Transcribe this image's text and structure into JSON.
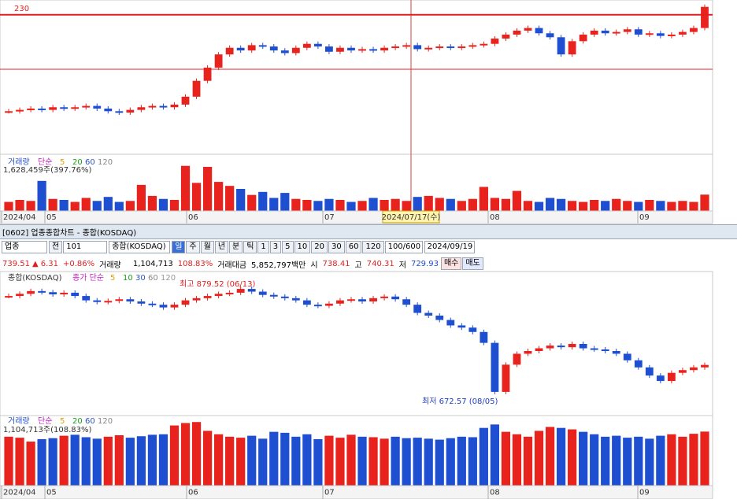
{
  "colors": {
    "up": "#e8231d",
    "down": "#1f4fd1"
  },
  "date_axis": [
    "2024/04",
    "05",
    "06",
    "07",
    "08",
    "09"
  ],
  "top_chart": {
    "ref_line": 230,
    "ylim": [
      125,
      240
    ],
    "closes": [
      157,
      158,
      159,
      158,
      160,
      159,
      160,
      161,
      159,
      157,
      156,
      158,
      160,
      161,
      160,
      162,
      168,
      180,
      190,
      200,
      205,
      203,
      207,
      206,
      203,
      201,
      205,
      208,
      206,
      202,
      205,
      203,
      204,
      203,
      205,
      206,
      207,
      204,
      205,
      206,
      205,
      206,
      207,
      208,
      212,
      215,
      218,
      220,
      216,
      213,
      200,
      210,
      215,
      218,
      216,
      217,
      219,
      215,
      216,
      214,
      215,
      217,
      220,
      236
    ],
    "volume_legend": {
      "name": "거래량",
      "ma": "단순",
      "periods": [
        5,
        20,
        60,
        120
      ]
    },
    "volume_value": "1,628,459주(397.76%)",
    "vol_ylim": [
      0,
      5500000
    ],
    "volumes": [
      900000,
      1100000,
      1000000,
      3000000,
      1200000,
      1100000,
      900000,
      1300000,
      1000000,
      1400000,
      900000,
      1000000,
      2600000,
      1500000,
      1200000,
      1100000,
      4500000,
      2800000,
      4400000,
      2900000,
      2500000,
      2200000,
      1600000,
      1900000,
      1300000,
      1800000,
      1200000,
      1100000,
      1000000,
      1200000,
      1100000,
      900000,
      1000000,
      1300000,
      1100000,
      1200000,
      1000000,
      1400000,
      1500000,
      1300000,
      1200000,
      1000000,
      1200000,
      2400000,
      1300000,
      1200000,
      2000000,
      1000000,
      900000,
      1300000,
      1200000,
      1000000,
      900000,
      1100000,
      1000000,
      1200000,
      1000000,
      900000,
      1100000,
      1000000,
      900000,
      1000000,
      900000,
      1628459
    ],
    "crosshair_date": "2024/07/17(수)"
  },
  "window_title": "[0602] 업종종합차트 - 종합(KOSDAQ)",
  "toolbar": {
    "market": "업종",
    "prefix": "전",
    "code": "101",
    "name": "종합(KOSDAQ)",
    "periods": [
      "일",
      "주",
      "월",
      "년",
      "분",
      "틱"
    ],
    "intervals": [
      1,
      3,
      5,
      10,
      20,
      30,
      60,
      120
    ],
    "count": "100/600",
    "date": "2024/09/19"
  },
  "info_row": {
    "price": 739.51,
    "arrow": "▲",
    "change": 6.31,
    "change_pct": "+0.86%",
    "volume_label": "거래량",
    "volume": "1,104,713",
    "volume_pct": "108.83%",
    "amount_label": "거래대금",
    "amount": "5,852,797백만",
    "open_label": "시",
    "open": 738.41,
    "high_label": "고",
    "high": 740.31,
    "low_label": "저",
    "low": 729.93,
    "buy": "매수",
    "sell": "매도"
  },
  "bottom_chart": {
    "legend_name": "종합(KOSDAQ)",
    "ma_label": "종가 단순",
    "ma_periods": [
      5,
      10,
      30,
      60,
      120
    ],
    "high_label": "최고 879.52 (06/13)",
    "low_label": "최저 672.57 (08/05)",
    "ylim": [
      648,
      908
    ],
    "closes": [
      866,
      870,
      875,
      873,
      869,
      872,
      866,
      858,
      855,
      857,
      860,
      856,
      852,
      850,
      845,
      850,
      858,
      862,
      866,
      870,
      872,
      879,
      874,
      868,
      865,
      862,
      858,
      850,
      848,
      852,
      858,
      860,
      856,
      862,
      865,
      860,
      850,
      835,
      830,
      822,
      812,
      808,
      800,
      780,
      690,
      740,
      760,
      765,
      770,
      775,
      772,
      778,
      770,
      768,
      765,
      760,
      748,
      735,
      720,
      710,
      725,
      730,
      735,
      739.51
    ],
    "volume_legend": {
      "name": "거래량",
      "ma": "단순",
      "periods": [
        5,
        20,
        60,
        120
      ]
    },
    "volume_value": "1,104,713주(108.83%)",
    "vol_ylim": [
      0,
      1400000
    ],
    "volumes": [
      1000000,
      980000,
      900000,
      950000,
      970000,
      1020000,
      1040000,
      990000,
      960000,
      1000000,
      1030000,
      980000,
      1010000,
      1040000,
      1050000,
      1230000,
      1280000,
      1300000,
      1120000,
      1050000,
      1000000,
      980000,
      1020000,
      960000,
      1100000,
      1080000,
      1000000,
      1050000,
      950000,
      1020000,
      980000,
      1040000,
      1000000,
      990000,
      960000,
      1000000,
      970000,
      980000,
      960000,
      940000,
      970000,
      1000000,
      990000,
      1180000,
      1250000,
      1100000,
      1050000,
      1000000,
      1120000,
      1200000,
      1180000,
      1150000,
      1100000,
      1050000,
      1000000,
      1020000,
      980000,
      1000000,
      960000,
      1020000,
      1050000,
      1000000,
      1060000,
      1104713
    ]
  }
}
